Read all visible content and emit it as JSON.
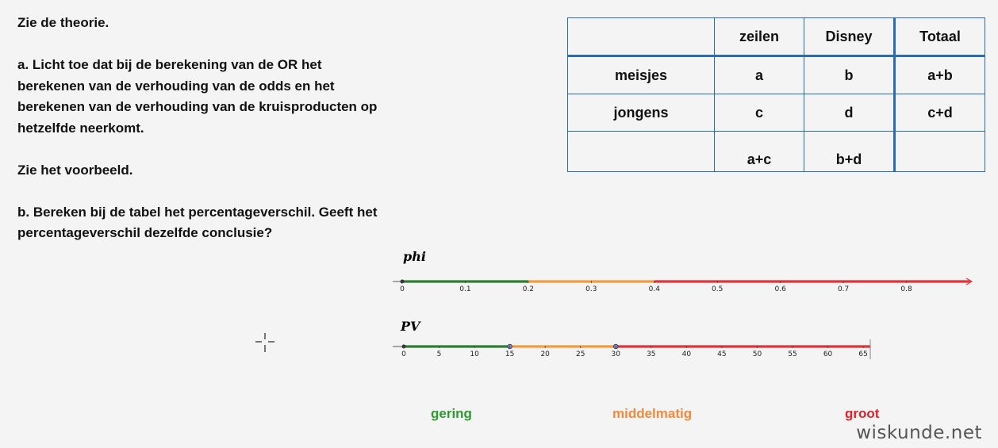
{
  "instructions": {
    "line1": "Zie de theorie.",
    "a": [
      "a. Licht toe dat bij de berekening van de OR het",
      "berekenen van de verhouding van de odds en het",
      "berekenen van de verhouding van de kruisproducten op",
      "hetzelfde neerkomt."
    ],
    "line_voorbeeld": "Zie het voorbeeld.",
    "b": [
      "b. Bereken bij de tabel het percentageverschil. Geeft het",
      "percentageverschil dezelfde conclusie?"
    ]
  },
  "table": {
    "headers": [
      "",
      "zeilen",
      "Disney",
      "Totaal"
    ],
    "rows": [
      [
        "meisjes",
        "a",
        "b",
        "a+b"
      ],
      [
        "jongens",
        "c",
        "d",
        "c+d"
      ],
      [
        "",
        "a+c",
        "b+d",
        ""
      ]
    ]
  },
  "phi_scale": {
    "label": "phi",
    "ticks": [
      "0",
      "0.1",
      "0.2",
      "0.3",
      "0.4",
      "0.5",
      "0.6",
      "0.7",
      "0.8"
    ],
    "tick_values": [
      0,
      0.1,
      0.2,
      0.3,
      0.4,
      0.5,
      0.6,
      0.7,
      0.8
    ],
    "max": 0.9,
    "segments": [
      {
        "from": 0,
        "to": 0.2,
        "color": "#2e7d32"
      },
      {
        "from": 0.2,
        "to": 0.4,
        "color": "#f39c3c"
      },
      {
        "from": 0.4,
        "to": 0.9,
        "color": "#e0333a"
      }
    ]
  },
  "pv_scale": {
    "label": "PV",
    "ticks": [
      "0",
      "5",
      "10",
      "15",
      "20",
      "25",
      "30",
      "35",
      "40",
      "45",
      "50",
      "55",
      "60",
      "65"
    ],
    "tick_values": [
      0,
      5,
      10,
      15,
      20,
      25,
      30,
      35,
      40,
      45,
      50,
      55,
      60,
      65
    ],
    "max": 66,
    "points": [
      15,
      30
    ],
    "segments": [
      {
        "from": 0,
        "to": 15,
        "color": "#2e7d32"
      },
      {
        "from": 15,
        "to": 30,
        "color": "#f39c3c"
      },
      {
        "from": 30,
        "to": 66,
        "color": "#e0333a"
      }
    ]
  },
  "legend": {
    "gering": {
      "label": "gering",
      "color": "#2e9a2e"
    },
    "middelmatig": {
      "label": "middelmatig",
      "color": "#f08a3c"
    },
    "groot": {
      "label": "groot",
      "color": "#e0202a"
    }
  },
  "watermark": "wiskunde.net"
}
